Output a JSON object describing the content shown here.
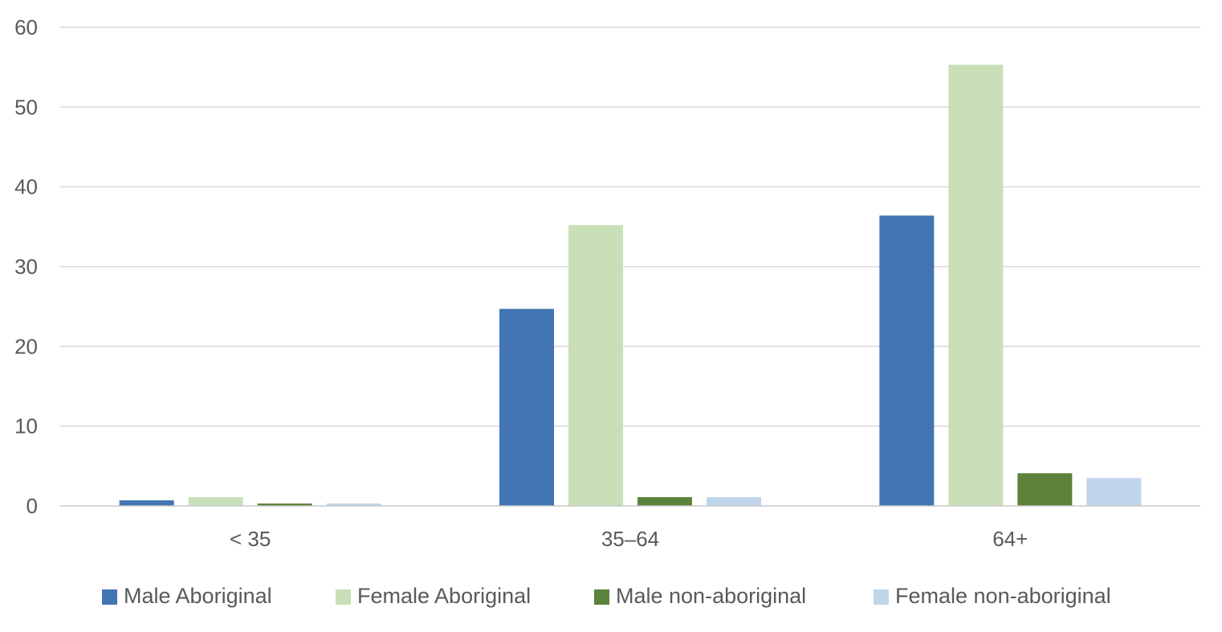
{
  "chart_data": {
    "type": "bar",
    "categories": [
      "< 35",
      "35–64",
      "64+"
    ],
    "series": [
      {
        "name": "Male Aboriginal",
        "color": "#4374b3",
        "values": [
          0.7,
          24.7,
          36.4
        ]
      },
      {
        "name": "Female Aboriginal",
        "color": "#c9dfb8",
        "values": [
          1.1,
          35.2,
          55.3
        ]
      },
      {
        "name": "Male non-aboriginal",
        "color": "#5c823c",
        "values": [
          0.3,
          1.1,
          4.1
        ]
      },
      {
        "name": "Female non-aboriginal",
        "color": "#c0d5ea",
        "values": [
          0.3,
          1.1,
          3.5
        ]
      }
    ],
    "ylim": [
      0,
      60
    ],
    "yticks": [
      0,
      10,
      20,
      30,
      40,
      50,
      60
    ],
    "grid": true,
    "legend": "bottom",
    "title": "",
    "xlabel": "",
    "ylabel": ""
  }
}
